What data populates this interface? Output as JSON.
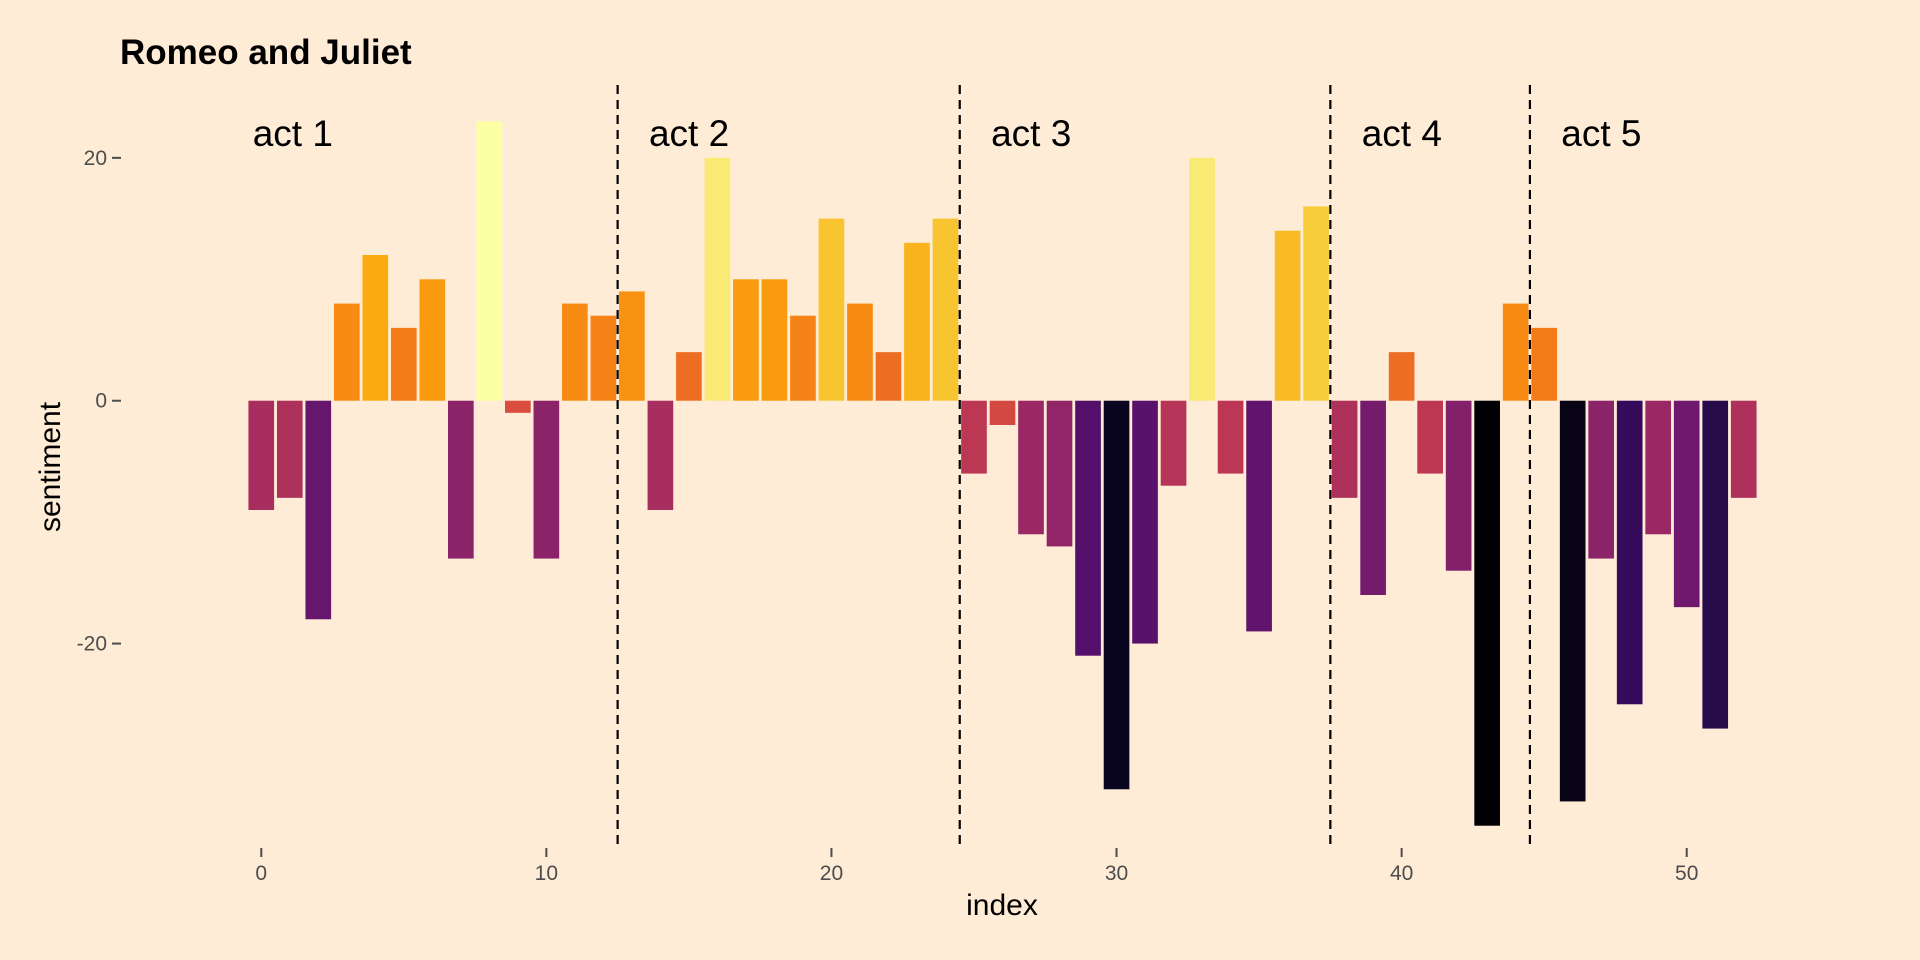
{
  "chart_data": {
    "type": "bar",
    "title": "Romeo and Juliet",
    "xlabel": "index",
    "ylabel": "sentiment",
    "xlim": [
      -2.5,
      54.5
    ],
    "ylim": [
      -37,
      26
    ],
    "x_ticks": [
      0,
      10,
      20,
      30,
      40,
      50
    ],
    "y_ticks": [
      -20,
      0,
      20
    ],
    "grid": false,
    "legend": "none",
    "colors": {
      "background": "#ffecd7",
      "tick": "#4d4d4d",
      "divider": "#000000"
    },
    "act_boundaries": [
      12.5,
      24.5,
      37.5,
      44.5
    ],
    "acts": [
      {
        "label": "act 1"
      },
      {
        "label": "act 2"
      },
      {
        "label": "act 3"
      },
      {
        "label": "act 4"
      },
      {
        "label": "act 5"
      }
    ],
    "index": [
      0,
      1,
      2,
      3,
      4,
      5,
      6,
      7,
      8,
      9,
      10,
      11,
      12,
      13,
      14,
      15,
      16,
      17,
      18,
      19,
      20,
      21,
      22,
      23,
      24,
      25,
      26,
      27,
      28,
      29,
      30,
      31,
      32,
      33,
      34,
      35,
      36,
      37,
      38,
      39,
      40,
      41,
      42,
      43,
      44,
      45,
      46,
      47,
      48,
      49,
      50,
      51,
      52
    ],
    "values": [
      -9,
      -8,
      -18,
      8,
      12,
      6,
      10,
      -13,
      23,
      -1,
      -13,
      8,
      7,
      9,
      -9,
      4,
      20,
      10,
      10,
      7,
      15,
      8,
      4,
      13,
      15,
      -6,
      -2,
      -11,
      -12,
      -21,
      -32,
      -20,
      -7,
      20,
      -6,
      -19,
      14,
      16,
      -8,
      -16,
      4,
      -6,
      -14,
      -35,
      8,
      6,
      -33,
      -13,
      -25,
      -11,
      -17,
      -27,
      -8
    ],
    "color_scale": "inferno"
  }
}
